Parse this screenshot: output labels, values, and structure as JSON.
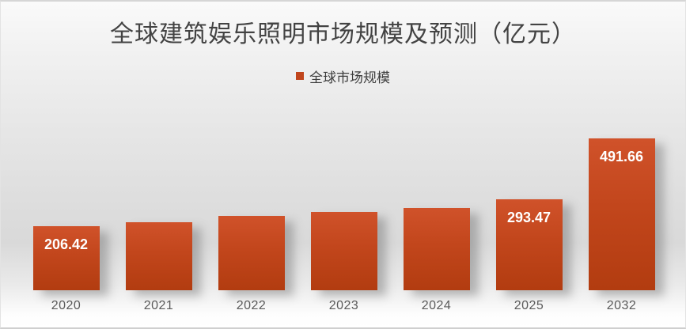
{
  "chart_data": {
    "type": "bar",
    "title": "全球建筑娱乐照明市场规模及预测（亿元）",
    "legend": [
      {
        "label": "全球市场规模",
        "color": "#c0451c"
      }
    ],
    "legend_position": "top-center",
    "categories": [
      "2020",
      "2021",
      "2022",
      "2023",
      "2024",
      "2025",
      "2032"
    ],
    "series": [
      {
        "name": "全球市场规模",
        "values": [
          206.42,
          220,
          240,
          253,
          266,
          293.47,
          491.66
        ],
        "data_labels": [
          "206.42",
          "",
          "",
          "",
          "",
          "293.47",
          "491.66"
        ]
      }
    ],
    "unlabeled_bar_values_estimated": true,
    "xlabel": "",
    "ylabel": "",
    "ylim": [
      0,
      500
    ],
    "grid": false,
    "axes_drawn": false,
    "colors": {
      "bar_top": "#d0522a",
      "bar_bottom": "#b23c10",
      "data_label": "#ffffff",
      "axis_label": "#5a5a5a",
      "title": "#434343"
    }
  }
}
